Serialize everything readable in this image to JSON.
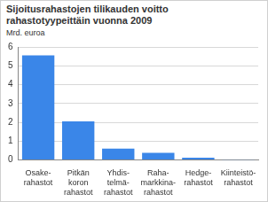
{
  "chart_data": {
    "type": "bar",
    "title": "Sijoitusrahastojen tilikauden voitto rahastotyypeittäin vuonna 2009",
    "y_label": "Mrd. euroa",
    "categories": [
      [
        "Osake-",
        "rahastot"
      ],
      [
        "Pitkän",
        "koron",
        "rahastot"
      ],
      [
        "Yhdis-",
        "telmä-",
        "rahastot"
      ],
      [
        "Raha-",
        "markkina-",
        "rahastot"
      ],
      [
        "Hedge-",
        "rahastot"
      ],
      [
        "Kiinteistö-",
        "rahastot"
      ]
    ],
    "values": [
      5.55,
      2.05,
      0.6,
      0.38,
      0.12,
      0.02
    ],
    "color": "#3a86e8",
    "ylim": [
      0,
      6
    ],
    "yticks": [
      0,
      1,
      2,
      3,
      4,
      5,
      6
    ],
    "grid": true
  }
}
